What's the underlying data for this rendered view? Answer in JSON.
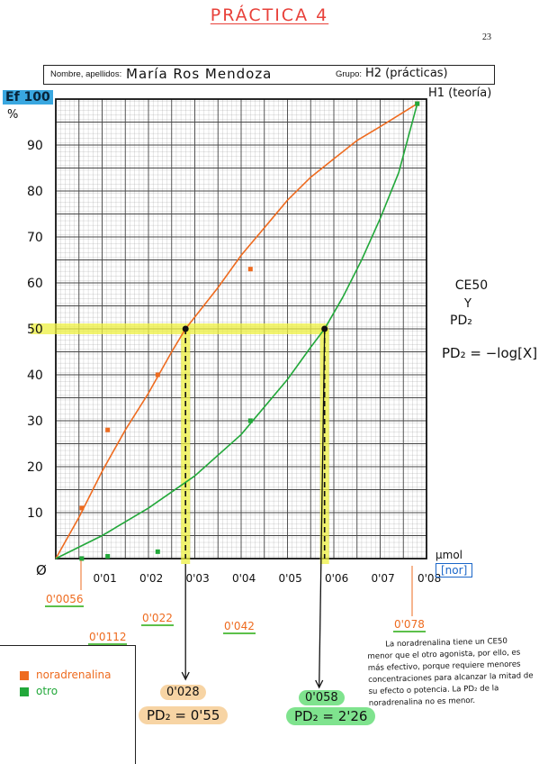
{
  "page": {
    "title": "PRÁCTICA 4",
    "page_number": "23",
    "header": {
      "name_label": "Nombre, apellidos:",
      "name_value": "María Ros Mendoza",
      "group_label": "Grupo:",
      "group_value": "H2 (prácticas)",
      "theory_group": "H1 (teoría)"
    },
    "y_axis_title": "Ef 100",
    "y_axis_unit": "%",
    "x_axis_unit": "µmol",
    "x_axis_unit_boxed": "[nor]",
    "ceso_label": "CE50",
    "y_label": "Y",
    "pd2_label": "PD₂",
    "formula": "PD₂ = −log[X]",
    "x_marked_values": [
      "0'0056",
      "0'0112",
      "0'022",
      "0'042",
      "0'078"
    ],
    "results": {
      "noradrenalina_ce50": "0'028",
      "noradrenalina_pd2": "PD₂ = 0'55",
      "otro_ce50": "0'058",
      "otro_pd2": "PD₂ = 2'26"
    },
    "legend": [
      {
        "label": "noradrenalina",
        "color": "#ee6b1f"
      },
      {
        "label": "otro",
        "color": "#22a83a"
      }
    ],
    "conclusion": "La noradrenalina tiene un CE50 menor que el otro agonista, por ello, es más efectivo, porque requiere menores concentraciones para alcanzar la mitad de su efecto o potencia. La PD₂ de la noradrenalina no es menor."
  },
  "chart_data": {
    "type": "scatter",
    "x_tick_labels": [
      "0'01",
      "0'02",
      "0'03",
      "0'04",
      "0'05",
      "0'06",
      "0'07",
      "0'08"
    ],
    "y_tick_labels": [
      "10",
      "20",
      "30",
      "40",
      "50",
      "60",
      "70",
      "80",
      "90"
    ],
    "origin_label": "Ø",
    "xlim": [
      0,
      0.08
    ],
    "ylim": [
      0,
      100
    ],
    "grid": true,
    "reference_line_y": 50,
    "series": [
      {
        "name": "noradrenalina",
        "color": "#ee6b1f",
        "points": [
          {
            "x": 0.0056,
            "y": 11
          },
          {
            "x": 0.0112,
            "y": 28
          },
          {
            "x": 0.022,
            "y": 40
          },
          {
            "x": 0.042,
            "y": 63
          },
          {
            "x": 0.078,
            "y": 99
          }
        ],
        "curve": [
          {
            "x": 0,
            "y": 0
          },
          {
            "x": 0.005,
            "y": 9
          },
          {
            "x": 0.01,
            "y": 19
          },
          {
            "x": 0.015,
            "y": 28
          },
          {
            "x": 0.02,
            "y": 36
          },
          {
            "x": 0.025,
            "y": 45
          },
          {
            "x": 0.028,
            "y": 50
          },
          {
            "x": 0.035,
            "y": 59
          },
          {
            "x": 0.04,
            "y": 66
          },
          {
            "x": 0.045,
            "y": 72
          },
          {
            "x": 0.05,
            "y": 78
          },
          {
            "x": 0.055,
            "y": 83
          },
          {
            "x": 0.06,
            "y": 87
          },
          {
            "x": 0.065,
            "y": 91
          },
          {
            "x": 0.07,
            "y": 94
          },
          {
            "x": 0.078,
            "y": 99
          }
        ],
        "ce50": 0.028
      },
      {
        "name": "otro",
        "color": "#22a83a",
        "points": [
          {
            "x": 0.0056,
            "y": 0
          },
          {
            "x": 0.0112,
            "y": 0.5
          },
          {
            "x": 0.022,
            "y": 1.5
          },
          {
            "x": 0.042,
            "y": 30
          },
          {
            "x": 0.078,
            "y": 99
          }
        ],
        "curve": [
          {
            "x": 0,
            "y": 0
          },
          {
            "x": 0.01,
            "y": 5
          },
          {
            "x": 0.02,
            "y": 11
          },
          {
            "x": 0.03,
            "y": 18
          },
          {
            "x": 0.04,
            "y": 27
          },
          {
            "x": 0.045,
            "y": 33
          },
          {
            "x": 0.05,
            "y": 39
          },
          {
            "x": 0.055,
            "y": 46
          },
          {
            "x": 0.058,
            "y": 50
          },
          {
            "x": 0.062,
            "y": 57
          },
          {
            "x": 0.066,
            "y": 65
          },
          {
            "x": 0.07,
            "y": 74
          },
          {
            "x": 0.074,
            "y": 84
          },
          {
            "x": 0.078,
            "y": 99
          }
        ],
        "ce50": 0.058
      }
    ]
  }
}
